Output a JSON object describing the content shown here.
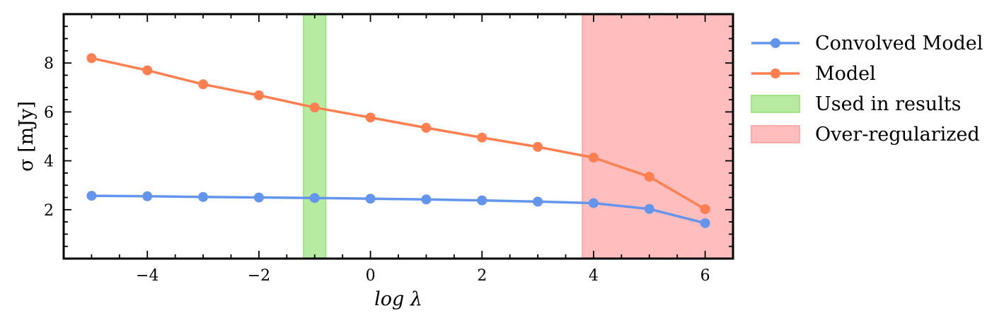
{
  "chart_data": {
    "type": "line",
    "xlabel": "log λ",
    "ylabel": "σ [mJy]",
    "xlim": [
      -5.5,
      6.5
    ],
    "ylim": [
      0,
      10
    ],
    "xticks": [
      {
        "value": -4,
        "label": "−4"
      },
      {
        "value": -2,
        "label": "−2"
      },
      {
        "value": 0,
        "label": "0"
      },
      {
        "value": 2,
        "label": "2"
      },
      {
        "value": 4,
        "label": "4"
      },
      {
        "value": 6,
        "label": "6"
      }
    ],
    "yticks": [
      {
        "value": 2,
        "label": "2"
      },
      {
        "value": 4,
        "label": "4"
      },
      {
        "value": 6,
        "label": "6"
      },
      {
        "value": 8,
        "label": "8"
      }
    ],
    "x": [
      -5,
      -4,
      -3,
      -2,
      -1,
      0,
      1,
      2,
      3,
      4,
      5,
      6
    ],
    "series": [
      {
        "name": "Convolved Model",
        "color": "#6495ed",
        "values": [
          2.57,
          2.55,
          2.52,
          2.5,
          2.48,
          2.45,
          2.42,
          2.38,
          2.33,
          2.27,
          2.03,
          1.45
        ]
      },
      {
        "name": "Model",
        "color": "#ff7f50",
        "values": [
          8.2,
          7.7,
          7.13,
          6.68,
          6.18,
          5.77,
          5.35,
          4.95,
          4.57,
          4.13,
          3.35,
          2.02
        ]
      }
    ],
    "regions": [
      {
        "name": "Used in results",
        "x_range": [
          -1.2,
          -0.8
        ],
        "color": "#90e070"
      },
      {
        "name": "Over-regularized",
        "x_range": [
          3.8,
          6.5
        ],
        "color": "#ff9a9a"
      }
    ],
    "legend_position": "outside-right",
    "grid": false
  }
}
